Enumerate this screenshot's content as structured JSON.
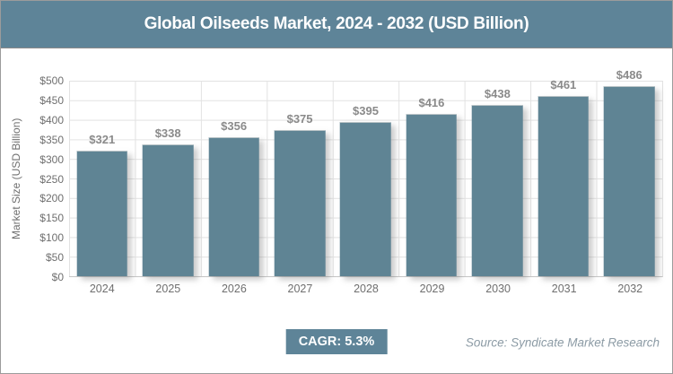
{
  "header": {
    "title": "Global Oilseeds Market, 2024 - 2032 (USD Billion)"
  },
  "chart_data": {
    "type": "bar",
    "title": "Global Oilseeds Market, 2024 - 2032 (USD Billion)",
    "categories": [
      "2024",
      "2025",
      "2026",
      "2027",
      "2028",
      "2029",
      "2030",
      "2031",
      "2032"
    ],
    "values": [
      321,
      338,
      356,
      375,
      395,
      416,
      438,
      461,
      486
    ],
    "value_prefix": "$",
    "value_labels": [
      "$321",
      "$338",
      "$356",
      "$375",
      "$395",
      "$416",
      "$438",
      "$461",
      "$486"
    ],
    "xlabel": "",
    "ylabel": "Market Size (USD Billion)",
    "ylim": [
      0,
      500
    ],
    "ytick_step": 50,
    "ytick_labels": [
      "$500",
      "$450",
      "$400",
      "$350",
      "$300",
      "$250",
      "$200",
      "$150",
      "$100",
      "$50",
      "$0"
    ],
    "grid": true,
    "legend": "none"
  },
  "footer": {
    "cagr_label": "CAGR: 5.3%",
    "source": "Source: Syndicate Market Research"
  },
  "colors": {
    "header_bg": "#5E8498",
    "bar": "#5F8494",
    "badge_bg": "#5E8498",
    "value_label": "#8a8a8a",
    "axis_text": "#6f6f6f",
    "grid": "#e2e2e2",
    "source_text": "#8c9ba5",
    "border": "#9b9b9b"
  }
}
